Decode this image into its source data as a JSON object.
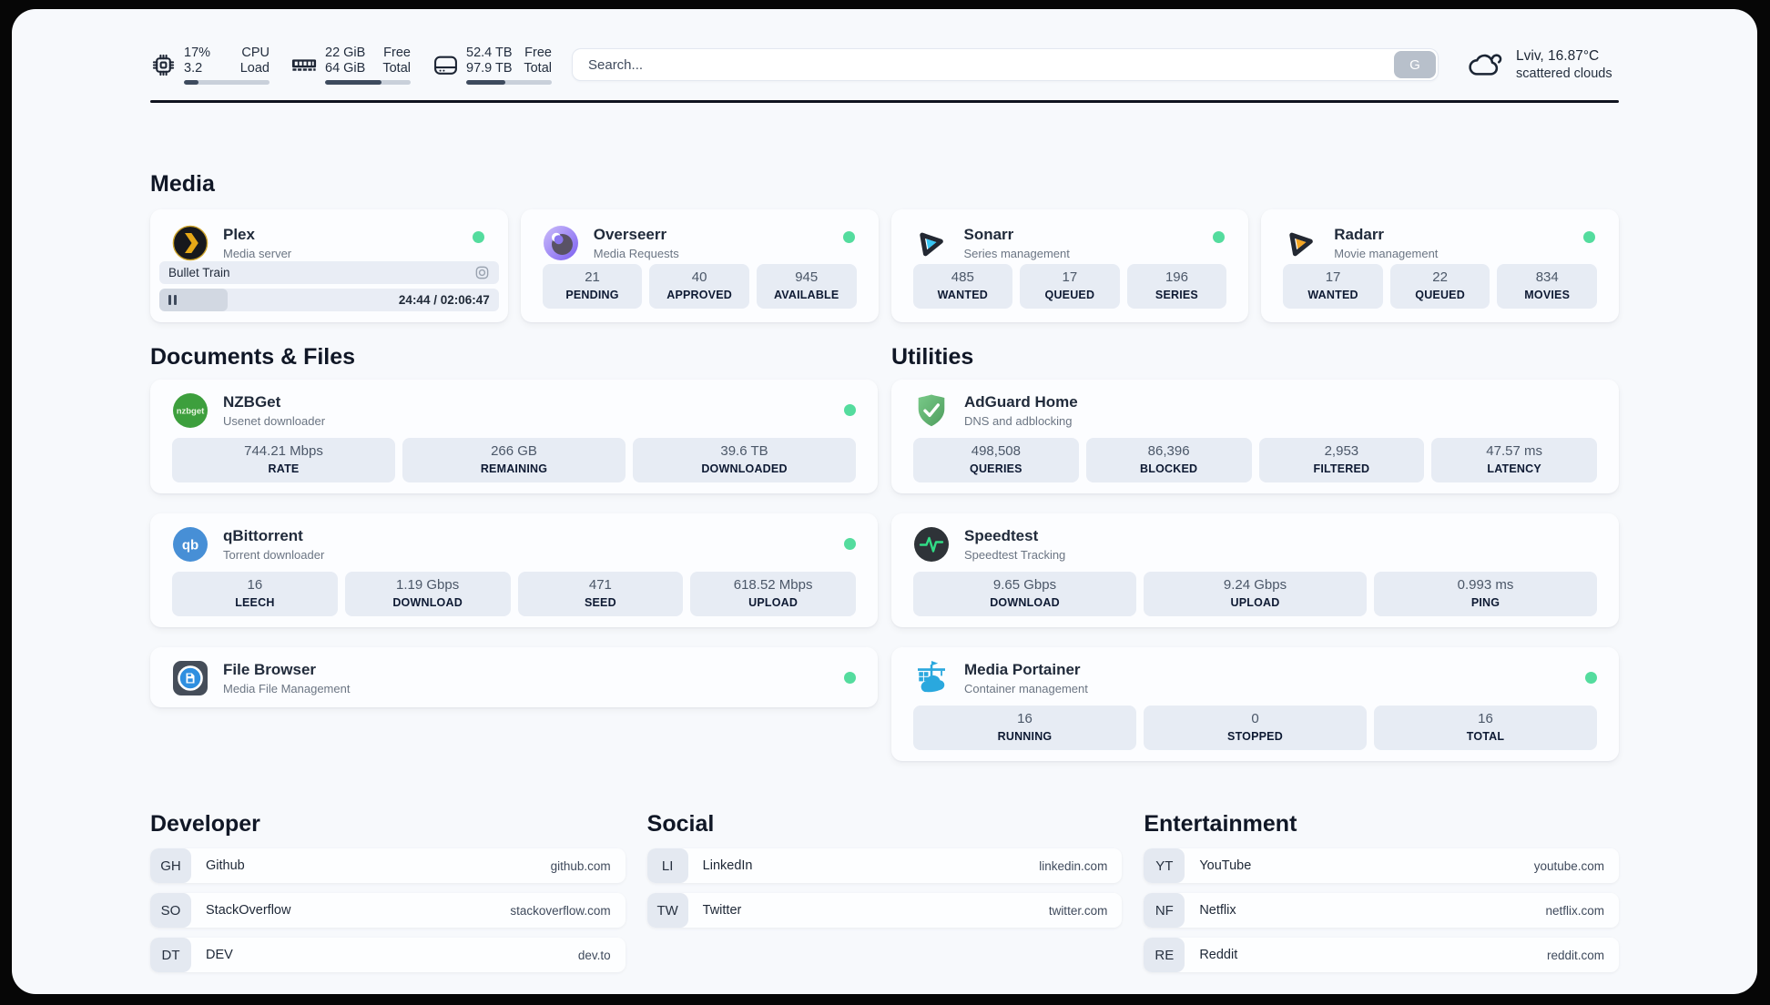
{
  "header": {
    "system_widgets": [
      {
        "icon": "cpu-icon",
        "primary": "17%",
        "secondary": "3.2",
        "label_primary": "CPU",
        "label_secondary": "Load",
        "progress_percent": 17
      },
      {
        "icon": "ram-icon",
        "primary": "22 GiB",
        "secondary": "64 GiB",
        "label_primary": "Free",
        "label_secondary": "Total",
        "progress_percent": 66
      },
      {
        "icon": "disk-icon",
        "primary": "52.4 TB",
        "secondary": "97.9 TB",
        "label_primary": "Free",
        "label_secondary": "Total",
        "progress_percent": 46
      }
    ],
    "search": {
      "placeholder": "Search...",
      "button_label": "G"
    },
    "weather": {
      "icon": "cloud-icon",
      "location": "Lviv, 16.87°C",
      "condition": "scattered clouds"
    }
  },
  "media": {
    "title": "Media",
    "plex": {
      "name": "Plex",
      "subtitle": "Media server",
      "online": true,
      "now_playing": {
        "title": "Bullet Train",
        "time": "24:44 / 02:06:47",
        "progress_percent": 20
      }
    },
    "overseerr": {
      "name": "Overseerr",
      "subtitle": "Media Requests",
      "online": true,
      "stats": [
        {
          "value": "21",
          "label": "PENDING"
        },
        {
          "value": "40",
          "label": "APPROVED"
        },
        {
          "value": "945",
          "label": "AVAILABLE"
        }
      ]
    },
    "sonarr": {
      "name": "Sonarr",
      "subtitle": "Series management",
      "online": true,
      "stats": [
        {
          "value": "485",
          "label": "WANTED"
        },
        {
          "value": "17",
          "label": "QUEUED"
        },
        {
          "value": "196",
          "label": "SERIES"
        }
      ]
    },
    "radarr": {
      "name": "Radarr",
      "subtitle": "Movie management",
      "online": true,
      "stats": [
        {
          "value": "17",
          "label": "WANTED"
        },
        {
          "value": "22",
          "label": "QUEUED"
        },
        {
          "value": "834",
          "label": "MOVIES"
        }
      ]
    }
  },
  "documents": {
    "title": "Documents & Files",
    "nzbget": {
      "name": "NZBGet",
      "subtitle": "Usenet downloader",
      "online": true,
      "stats": [
        {
          "value": "744.21 Mbps",
          "label": "RATE"
        },
        {
          "value": "266 GB",
          "label": "REMAINING"
        },
        {
          "value": "39.6 TB",
          "label": "DOWNLOADED"
        }
      ]
    },
    "qbittorrent": {
      "name": "qBittorrent",
      "subtitle": "Torrent downloader",
      "online": true,
      "stats": [
        {
          "value": "16",
          "label": "LEECH"
        },
        {
          "value": "1.19 Gbps",
          "label": "DOWNLOAD"
        },
        {
          "value": "471",
          "label": "SEED"
        },
        {
          "value": "618.52 Mbps",
          "label": "UPLOAD"
        }
      ]
    },
    "filebrowser": {
      "name": "File Browser",
      "subtitle": "Media File Management",
      "online": true
    }
  },
  "utilities": {
    "title": "Utilities",
    "adguard": {
      "name": "AdGuard Home",
      "subtitle": "DNS and adblocking",
      "stats": [
        {
          "value": "498,508",
          "label": "QUERIES"
        },
        {
          "value": "86,396",
          "label": "BLOCKED"
        },
        {
          "value": "2,953",
          "label": "FILTERED"
        },
        {
          "value": "47.57 ms",
          "label": "LATENCY"
        }
      ]
    },
    "speedtest": {
      "name": "Speedtest",
      "subtitle": "Speedtest Tracking",
      "stats": [
        {
          "value": "9.65 Gbps",
          "label": "DOWNLOAD"
        },
        {
          "value": "9.24 Gbps",
          "label": "UPLOAD"
        },
        {
          "value": "0.993 ms",
          "label": "PING"
        }
      ]
    },
    "portainer": {
      "name": "Media Portainer",
      "subtitle": "Container management",
      "online": true,
      "stats": [
        {
          "value": "16",
          "label": "RUNNING"
        },
        {
          "value": "0",
          "label": "STOPPED"
        },
        {
          "value": "16",
          "label": "TOTAL"
        }
      ]
    }
  },
  "bookmarks": {
    "developer": {
      "title": "Developer",
      "links": [
        {
          "badge": "GH",
          "name": "Github",
          "url": "github.com"
        },
        {
          "badge": "SO",
          "name": "StackOverflow",
          "url": "stackoverflow.com"
        },
        {
          "badge": "DT",
          "name": "DEV",
          "url": "dev.to"
        }
      ]
    },
    "social": {
      "title": "Social",
      "links": [
        {
          "badge": "LI",
          "name": "LinkedIn",
          "url": "linkedin.com"
        },
        {
          "badge": "TW",
          "name": "Twitter",
          "url": "twitter.com"
        }
      ]
    },
    "entertainment": {
      "title": "Entertainment",
      "links": [
        {
          "badge": "YT",
          "name": "YouTube",
          "url": "youtube.com"
        },
        {
          "badge": "NF",
          "name": "Netflix",
          "url": "netflix.com"
        },
        {
          "badge": "RE",
          "name": "Reddit",
          "url": "reddit.com"
        }
      ]
    }
  },
  "colors": {
    "status_online": "#54dc9e",
    "progress_fill": "#3e4b5e",
    "stat_box_bg": "#e7ecf4",
    "page_bg": "#f7f9fc"
  }
}
